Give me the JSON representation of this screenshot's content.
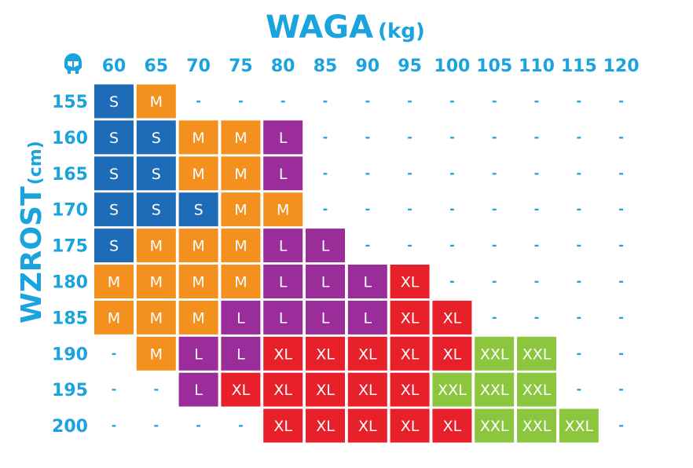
{
  "chart_data": {
    "type": "heatmap",
    "title": "WAGA",
    "title_unit": "(kg)",
    "xlabel": "WAGA (kg)",
    "ylabel": "WZROST",
    "ylabel_unit": "(cm)",
    "x_categories": [
      "60",
      "65",
      "70",
      "75",
      "80",
      "85",
      "90",
      "95",
      "100",
      "105",
      "110",
      "115",
      "120"
    ],
    "y_categories": [
      "155",
      "160",
      "165",
      "170",
      "175",
      "180",
      "185",
      "190",
      "195",
      "200"
    ],
    "empty_symbol": "-",
    "size_colors": {
      "S": "#1e6bb8",
      "M": "#f4901e",
      "L": "#9b2d9b",
      "XL": "#e8202a",
      "XXL": "#8cc63f"
    },
    "cells": [
      [
        "S",
        "M",
        "",
        "",
        "",
        "",
        "",
        "",
        "",
        "",
        "",
        "",
        ""
      ],
      [
        "S",
        "S",
        "M",
        "M",
        "L",
        "",
        "",
        "",
        "",
        "",
        "",
        "",
        ""
      ],
      [
        "S",
        "S",
        "M",
        "M",
        "L",
        "",
        "",
        "",
        "",
        "",
        "",
        "",
        ""
      ],
      [
        "S",
        "S",
        "S",
        "M",
        "M",
        "",
        "",
        "",
        "",
        "",
        "",
        "",
        ""
      ],
      [
        "S",
        "M",
        "M",
        "M",
        "L",
        "L",
        "",
        "",
        "",
        "",
        "",
        "",
        ""
      ],
      [
        "M",
        "M",
        "M",
        "M",
        "L",
        "L",
        "L",
        "XL",
        "",
        "",
        "",
        "",
        ""
      ],
      [
        "M",
        "M",
        "M",
        "L",
        "L",
        "L",
        "L",
        "XL",
        "XL",
        "",
        "",
        "",
        ""
      ],
      [
        "",
        "M",
        "L",
        "L",
        "XL",
        "XL",
        "XL",
        "XL",
        "XL",
        "XXL",
        "XXL",
        "",
        ""
      ],
      [
        "",
        "",
        "L",
        "XL",
        "XL",
        "XL",
        "XL",
        "XL",
        "XXL",
        "XXL",
        "XXL",
        "",
        ""
      ],
      [
        "",
        "",
        "",
        "",
        "XL",
        "XL",
        "XL",
        "XL",
        "XL",
        "XXL",
        "XXL",
        "XXL",
        ""
      ]
    ]
  },
  "colors": {
    "accent": "#1aa3dd"
  },
  "logo_icon": "helmet-logo-icon"
}
